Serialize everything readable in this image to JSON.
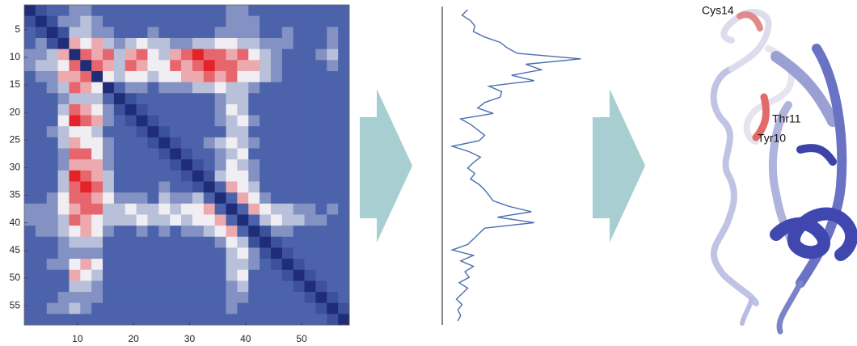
{
  "chart_data": [
    {
      "type": "heatmap",
      "xlim": [
        0.5,
        58.5
      ],
      "ylim": [
        0.5,
        58.5
      ],
      "xticks": [
        10,
        20,
        30,
        40,
        50
      ],
      "yticks": [
        5,
        10,
        15,
        20,
        25,
        30,
        35,
        40,
        45,
        50,
        55
      ],
      "clim": [
        0,
        9
      ],
      "colors": [
        "#1f2c78",
        "#4c63ab",
        "#f0eef2",
        "#e3222a"
      ],
      "matrix": [
        [
          0,
          2,
          3,
          3,
          4,
          4,
          3,
          3,
          3,
          3,
          3,
          3,
          3,
          3,
          3,
          3,
          3,
          3,
          4,
          4,
          3,
          3,
          3,
          3,
          3,
          3,
          3,
          3,
          3
        ],
        [
          2,
          0,
          2,
          4,
          4,
          5,
          4,
          3,
          3,
          3,
          3,
          3,
          3,
          3,
          3,
          3,
          3,
          3,
          4,
          4,
          4,
          3,
          3,
          3,
          3,
          3,
          3,
          3,
          3
        ],
        [
          3,
          2,
          0,
          2,
          5,
          5,
          4,
          4,
          3,
          3,
          3,
          4,
          3,
          3,
          3,
          3,
          3,
          4,
          4,
          4,
          4,
          3,
          3,
          4,
          3,
          3,
          3,
          4,
          3
        ],
        [
          3,
          4,
          2,
          0,
          7,
          6,
          7,
          5,
          4,
          5,
          6,
          5,
          5,
          4,
          4,
          5,
          5,
          6,
          6,
          5,
          5,
          4,
          4,
          4,
          3,
          3,
          3,
          4,
          3
        ],
        [
          4,
          4,
          5,
          7,
          0,
          8,
          7,
          8,
          5,
          7,
          8,
          6,
          5,
          7,
          8,
          9,
          8,
          8,
          7,
          8,
          6,
          5,
          4,
          3,
          3,
          3,
          4,
          5,
          3
        ],
        [
          4,
          5,
          5,
          6,
          8,
          0,
          8,
          7,
          5,
          8,
          7,
          6,
          6,
          8,
          7,
          8,
          9,
          8,
          8,
          7,
          7,
          5,
          4,
          3,
          3,
          3,
          3,
          4,
          3
        ],
        [
          3,
          4,
          4,
          7,
          7,
          8,
          0,
          6,
          5,
          6,
          6,
          5,
          6,
          6,
          7,
          7,
          8,
          7,
          8,
          6,
          6,
          5,
          4,
          3,
          3,
          3,
          3,
          3,
          3
        ],
        [
          3,
          3,
          4,
          5,
          8,
          7,
          6,
          0,
          3,
          4,
          4,
          3,
          4,
          4,
          4,
          5,
          5,
          6,
          5,
          5,
          4,
          3,
          3,
          3,
          3,
          3,
          3,
          3,
          3
        ],
        [
          3,
          3,
          3,
          4,
          5,
          5,
          5,
          3,
          0,
          2,
          3,
          3,
          3,
          3,
          3,
          3,
          3,
          4,
          5,
          5,
          3,
          3,
          3,
          3,
          3,
          3,
          3,
          3,
          3
        ],
        [
          3,
          3,
          3,
          5,
          8,
          7,
          6,
          4,
          2,
          0,
          2,
          3,
          3,
          3,
          3,
          3,
          3,
          4,
          6,
          5,
          3,
          3,
          3,
          3,
          3,
          3,
          3,
          3,
          3
        ],
        [
          3,
          3,
          3,
          6,
          9,
          8,
          7,
          4,
          3,
          2,
          0,
          2,
          3,
          3,
          3,
          3,
          3,
          4,
          5,
          6,
          4,
          3,
          3,
          3,
          3,
          3,
          3,
          3,
          3
        ],
        [
          3,
          3,
          4,
          5,
          6,
          6,
          5,
          3,
          3,
          3,
          2,
          0,
          2,
          3,
          3,
          3,
          3,
          3,
          5,
          5,
          3,
          3,
          3,
          3,
          3,
          3,
          3,
          3,
          3
        ],
        [
          3,
          3,
          3,
          5,
          7,
          6,
          6,
          4,
          3,
          3,
          3,
          2,
          0,
          2,
          3,
          3,
          4,
          5,
          6,
          5,
          4,
          3,
          3,
          3,
          3,
          3,
          3,
          3,
          3
        ],
        [
          3,
          3,
          3,
          4,
          8,
          8,
          6,
          4,
          3,
          3,
          3,
          3,
          2,
          0,
          2,
          3,
          3,
          4,
          5,
          6,
          3,
          3,
          3,
          3,
          3,
          3,
          3,
          3,
          3
        ],
        [
          3,
          3,
          3,
          4,
          7,
          7,
          7,
          4,
          3,
          3,
          3,
          3,
          3,
          2,
          0,
          2,
          3,
          4,
          6,
          5,
          4,
          3,
          3,
          3,
          3,
          3,
          3,
          3,
          3
        ],
        [
          3,
          3,
          3,
          5,
          9,
          8,
          7,
          5,
          3,
          3,
          3,
          3,
          3,
          3,
          2,
          0,
          2,
          5,
          6,
          6,
          4,
          3,
          3,
          3,
          3,
          3,
          3,
          3,
          3
        ],
        [
          3,
          3,
          3,
          5,
          8,
          9,
          8,
          5,
          3,
          3,
          3,
          3,
          4,
          3,
          3,
          2,
          0,
          3,
          7,
          6,
          5,
          3,
          3,
          3,
          3,
          3,
          3,
          3,
          3
        ],
        [
          3,
          3,
          4,
          6,
          8,
          8,
          7,
          6,
          4,
          4,
          4,
          3,
          5,
          4,
          4,
          5,
          3,
          0,
          3,
          7,
          6,
          4,
          3,
          3,
          3,
          3,
          3,
          3,
          3
        ],
        [
          4,
          4,
          4,
          6,
          7,
          8,
          8,
          5,
          5,
          6,
          5,
          5,
          6,
          5,
          6,
          6,
          7,
          3,
          0,
          3,
          7,
          6,
          5,
          5,
          4,
          4,
          3,
          4,
          3
        ],
        [
          4,
          4,
          4,
          5,
          8,
          7,
          6,
          5,
          5,
          5,
          6,
          5,
          5,
          6,
          5,
          6,
          6,
          7,
          3,
          0,
          3,
          5,
          6,
          5,
          5,
          4,
          4,
          3,
          3
        ],
        [
          3,
          4,
          4,
          5,
          6,
          7,
          6,
          4,
          3,
          3,
          4,
          3,
          4,
          3,
          4,
          4,
          5,
          6,
          7,
          3,
          0,
          2,
          4,
          4,
          3,
          3,
          3,
          3,
          3
        ],
        [
          3,
          3,
          3,
          4,
          5,
          5,
          5,
          3,
          3,
          3,
          3,
          3,
          3,
          3,
          3,
          3,
          3,
          4,
          6,
          5,
          2,
          0,
          2,
          3,
          3,
          3,
          3,
          3,
          3
        ],
        [
          3,
          3,
          3,
          4,
          4,
          4,
          4,
          3,
          3,
          3,
          3,
          3,
          3,
          3,
          3,
          3,
          3,
          3,
          5,
          6,
          4,
          2,
          0,
          2,
          3,
          3,
          3,
          3,
          3
        ],
        [
          3,
          3,
          4,
          4,
          6,
          7,
          6,
          3,
          3,
          3,
          3,
          3,
          3,
          3,
          3,
          3,
          3,
          3,
          5,
          5,
          4,
          3,
          2,
          0,
          2,
          3,
          3,
          3,
          3
        ],
        [
          3,
          3,
          3,
          3,
          7,
          6,
          5,
          3,
          3,
          3,
          3,
          3,
          3,
          3,
          3,
          3,
          3,
          3,
          5,
          6,
          3,
          3,
          3,
          2,
          0,
          2,
          3,
          3,
          3
        ],
        [
          3,
          3,
          3,
          3,
          5,
          5,
          4,
          3,
          3,
          3,
          3,
          3,
          3,
          3,
          3,
          3,
          3,
          3,
          4,
          5,
          3,
          3,
          3,
          3,
          2,
          0,
          2,
          3,
          3
        ],
        [
          3,
          3,
          3,
          4,
          4,
          4,
          4,
          3,
          3,
          3,
          3,
          3,
          3,
          3,
          3,
          3,
          3,
          3,
          4,
          4,
          3,
          3,
          3,
          3,
          3,
          2,
          0,
          2,
          3
        ],
        [
          3,
          3,
          4,
          4,
          5,
          4,
          3,
          3,
          3,
          3,
          3,
          3,
          3,
          3,
          3,
          3,
          3,
          3,
          4,
          3,
          3,
          3,
          3,
          3,
          3,
          3,
          2,
          0,
          2
        ],
        [
          3,
          3,
          3,
          3,
          3,
          3,
          3,
          3,
          3,
          3,
          3,
          3,
          3,
          3,
          3,
          3,
          3,
          3,
          3,
          3,
          3,
          3,
          3,
          3,
          3,
          3,
          3,
          2,
          0
        ]
      ]
    },
    {
      "type": "line",
      "orientation": "vertical",
      "color": "#4a6fb0",
      "xlim": [
        1,
        58
      ],
      "ylim": [
        0,
        100
      ],
      "x": [
        1,
        2,
        3,
        4,
        5,
        6,
        7,
        8,
        9,
        10,
        11,
        12,
        13,
        14,
        15,
        16,
        17,
        18,
        19,
        20,
        21,
        22,
        23,
        24,
        25,
        26,
        27,
        28,
        29,
        30,
        31,
        32,
        33,
        34,
        35,
        36,
        37,
        38,
        39,
        40,
        41,
        42,
        43,
        44,
        45,
        46,
        47,
        48,
        49,
        50,
        51,
        52,
        53,
        54,
        55,
        56,
        57,
        58
      ],
      "values": [
        18,
        14,
        20,
        23,
        22,
        30,
        41,
        46,
        53,
        98,
        59,
        70,
        49,
        65,
        33,
        42,
        41,
        30,
        25,
        36,
        13,
        20,
        25,
        30,
        26,
        7,
        19,
        27,
        22,
        18,
        23,
        20,
        26,
        30,
        33,
        36,
        47,
        63,
        39,
        65,
        30,
        26,
        22,
        18,
        7,
        22,
        13,
        22,
        16,
        19,
        12,
        18,
        14,
        10,
        14,
        11,
        13,
        11
      ]
    }
  ],
  "structure_labels": [
    "Cys14",
    "Thr11",
    "Tyr10"
  ]
}
